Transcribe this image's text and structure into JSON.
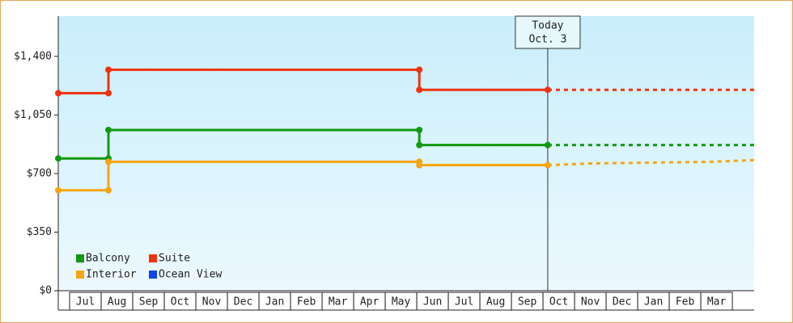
{
  "chart_data": {
    "type": "line",
    "x": [
      -0.36,
      1.23,
      1.23,
      11.08,
      11.08,
      15.15,
      16.5,
      20.3,
      21.69
    ],
    "xlim": [
      -0.36,
      21.69
    ],
    "xticks": [
      {
        "value": 0.5,
        "label": "Jul"
      },
      {
        "value": 1.5,
        "label": "Aug"
      },
      {
        "value": 2.5,
        "label": "Sep"
      },
      {
        "value": 3.5,
        "label": "Oct"
      },
      {
        "value": 4.5,
        "label": "Nov"
      },
      {
        "value": 5.5,
        "label": "Dec"
      },
      {
        "value": 6.5,
        "label": "Jan"
      },
      {
        "value": 7.5,
        "label": "Feb"
      },
      {
        "value": 8.5,
        "label": "Mar"
      },
      {
        "value": 9.5,
        "label": "Apr"
      },
      {
        "value": 10.5,
        "label": "May"
      },
      {
        "value": 11.5,
        "label": "Jun"
      },
      {
        "value": 12.5,
        "label": "Jul"
      },
      {
        "value": 13.5,
        "label": "Aug"
      },
      {
        "value": 14.5,
        "label": "Sep"
      },
      {
        "value": 15.5,
        "label": "Oct"
      },
      {
        "value": 16.5,
        "label": "Nov"
      },
      {
        "value": 17.5,
        "label": "Dec"
      },
      {
        "value": 18.5,
        "label": "Jan"
      },
      {
        "value": 19.5,
        "label": "Feb"
      },
      {
        "value": 20.5,
        "label": "Mar"
      }
    ],
    "ylim": [
      0,
      1640
    ],
    "yticks": [
      {
        "value": 0,
        "label": "$0"
      },
      {
        "value": 350,
        "label": "$350"
      },
      {
        "value": 700,
        "label": "$700"
      },
      {
        "value": 1050,
        "label": "$1,050"
      },
      {
        "value": 1400,
        "label": "$1,400"
      }
    ],
    "series": [
      {
        "name": "Balcony",
        "color": "#119911",
        "values": [
          790,
          790,
          960,
          960,
          870,
          870,
          870,
          870,
          870
        ]
      },
      {
        "name": "Suite",
        "color": "#ee3311",
        "values": [
          1180,
          1180,
          1320,
          1320,
          1200,
          1200,
          1200,
          1200,
          1200
        ]
      },
      {
        "name": "Interior",
        "color": "#f5a512",
        "values": [
          600,
          600,
          770,
          770,
          750,
          750,
          760,
          770,
          780
        ]
      },
      {
        "name": "Ocean View",
        "color": "#1144ee",
        "values": [
          null,
          null,
          null,
          null,
          null,
          null,
          null,
          null,
          null
        ]
      }
    ],
    "annotation": {
      "x": 15.15,
      "lines": [
        "Today",
        "Oct. 3"
      ]
    },
    "legend": "lower left"
  }
}
